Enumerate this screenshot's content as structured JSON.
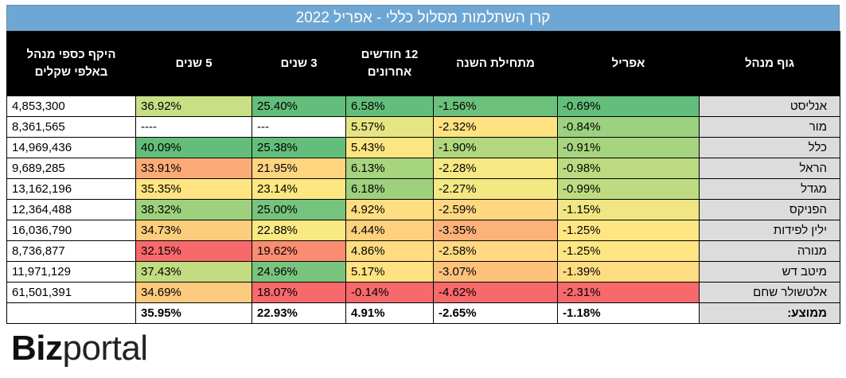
{
  "title": "קרן השתלמות מסלול כללי - אפריל 2022",
  "headers": {
    "company": "גוף מנהל",
    "april": "אפריל",
    "ytd": "מתחילת השנה",
    "m12": "12 חודשים אחרונים",
    "y3": "3 שנים",
    "y5": "5 שנים",
    "aum": "היקף כספי מנהל באלפי שקלים"
  },
  "rows": [
    {
      "company": "אנליסט",
      "april": "-0.69%",
      "ytd": "-1.56%",
      "m12": "6.58%",
      "y3": "25.40%",
      "y5": "36.92%",
      "aum": "4,853,300",
      "colors": {
        "april": "#63be7b",
        "ytd": "#6bc17c",
        "m12": "#63be7b",
        "y3": "#63be7b",
        "y5": "#c8df85"
      }
    },
    {
      "company": "מור",
      "april": "-0.84%",
      "ytd": "-2.32%",
      "m12": "5.57%",
      "y3": "---",
      "y5": "----",
      "aum": "8,361,565",
      "colors": {
        "april": "#9cd17f",
        "ytd": "#ffe383",
        "m12": "#e5e683",
        "y3": "#ffffff",
        "y5": "#ffffff"
      }
    },
    {
      "company": "כלל",
      "april": "-0.91%",
      "ytd": "-1.90%",
      "m12": "5.43%",
      "y3": "25.38%",
      "y5": "40.09%",
      "aum": "14,969,436",
      "colors": {
        "april": "#a7d47f",
        "ytd": "#b2d77f",
        "m12": "#fde582",
        "y3": "#63be7b",
        "y5": "#63be7b"
      }
    },
    {
      "company": "הראל",
      "april": "-0.98%",
      "ytd": "-2.28%",
      "m12": "6.13%",
      "y3": "21.95%",
      "y5": "33.91%",
      "aum": "9,689,285",
      "colors": {
        "april": "#bcdb81",
        "ytd": "#f6e883",
        "m12": "#a6d47f",
        "y3": "#fed47f",
        "y5": "#fcab77"
      }
    },
    {
      "company": "מגדל",
      "april": "-0.99%",
      "ytd": "-2.27%",
      "m12": "6.18%",
      "y3": "23.14%",
      "y5": "35.35%",
      "aum": "13,162,196",
      "colors": {
        "april": "#bddb81",
        "ytd": "#f4e883",
        "m12": "#9ed17e",
        "y3": "#fde782",
        "y5": "#fee582"
      }
    },
    {
      "company": "הפניקס",
      "april": "-1.15%",
      "ytd": "-2.59%",
      "m12": "4.92%",
      "y3": "25.00%",
      "y5": "38.32%",
      "aum": "12,364,488",
      "colors": {
        "april": "#f0e683",
        "ytd": "#ffd781",
        "m12": "#ffdd82",
        "y3": "#75c37d",
        "y5": "#9ed17e"
      }
    },
    {
      "company": "ילין לפידות",
      "april": "-1.25%",
      "ytd": "-3.35%",
      "m12": "4.44%",
      "y3": "22.88%",
      "y5": "34.73%",
      "aum": "16,036,790",
      "colors": {
        "april": "#fee683",
        "ytd": "#fcb279",
        "m12": "#ffd17f",
        "y3": "#f8e983",
        "y5": "#fdcd7e"
      }
    },
    {
      "company": "מנורה",
      "april": "-1.25%",
      "ytd": "-2.58%",
      "m12": "4.86%",
      "y3": "19.62%",
      "y5": "32.15%",
      "aum": "8,736,877",
      "colors": {
        "april": "#fee683",
        "ytd": "#ffd881",
        "m12": "#ffdb81",
        "y3": "#fa8c72",
        "y5": "#f8696b"
      }
    },
    {
      "company": "מיטב דש",
      "april": "-1.39%",
      "ytd": "-3.07%",
      "m12": "5.17%",
      "y3": "24.96%",
      "y5": "37.43%",
      "aum": "11,971,129",
      "colors": {
        "april": "#ffdc81",
        "ytd": "#fec27c",
        "m12": "#ffe383",
        "y3": "#78c47d",
        "y5": "#c1dc81"
      }
    },
    {
      "company": "אלטשולר שחם",
      "april": "-2.31%",
      "ytd": "-4.62%",
      "m12": "-0.14%",
      "y3": "18.07%",
      "y5": "34.69%",
      "aum": "61,501,391",
      "colors": {
        "april": "#f8696b",
        "ytd": "#f8696b",
        "m12": "#f8696b",
        "y3": "#f8696b",
        "y5": "#fdcb7e"
      }
    }
  ],
  "average": {
    "label": "ממוצע:",
    "april": "-1.18%",
    "ytd": "-2.65%",
    "m12": "4.91%",
    "y3": "22.93%",
    "y5": "35.95%",
    "aum": ""
  },
  "logo": {
    "part1": "Biz",
    "part2": "portal"
  }
}
